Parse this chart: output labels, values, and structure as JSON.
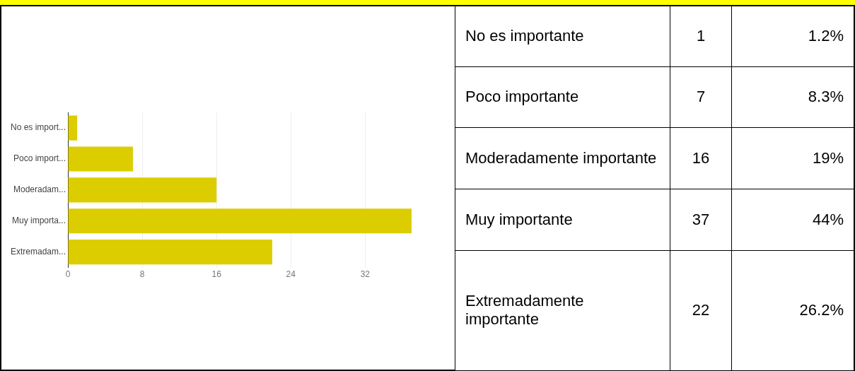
{
  "chart_data": [
    {
      "type": "bar",
      "orientation": "horizontal",
      "categories": [
        "No es import...",
        "Poco import...",
        "Moderadam...",
        "Muy importa...",
        "Extremadam..."
      ],
      "values": [
        1,
        7,
        16,
        37,
        22
      ],
      "color": "#dccd00",
      "xlim": [
        0,
        37
      ],
      "xticks": [
        0,
        8,
        16,
        24,
        32
      ],
      "grid": "x",
      "legend": false
    },
    {
      "type": "other",
      "categories": [
        "No es importante",
        "Poco importante",
        "Moderadamente importante",
        "Muy importante",
        "Extremadamente importante"
      ],
      "values": [
        1,
        7,
        16,
        37,
        22
      ],
      "data_labels": true,
      "annotations": [
        "1.2%",
        "8.3%",
        "19%",
        "44%",
        "26.2%"
      ]
    }
  ]
}
